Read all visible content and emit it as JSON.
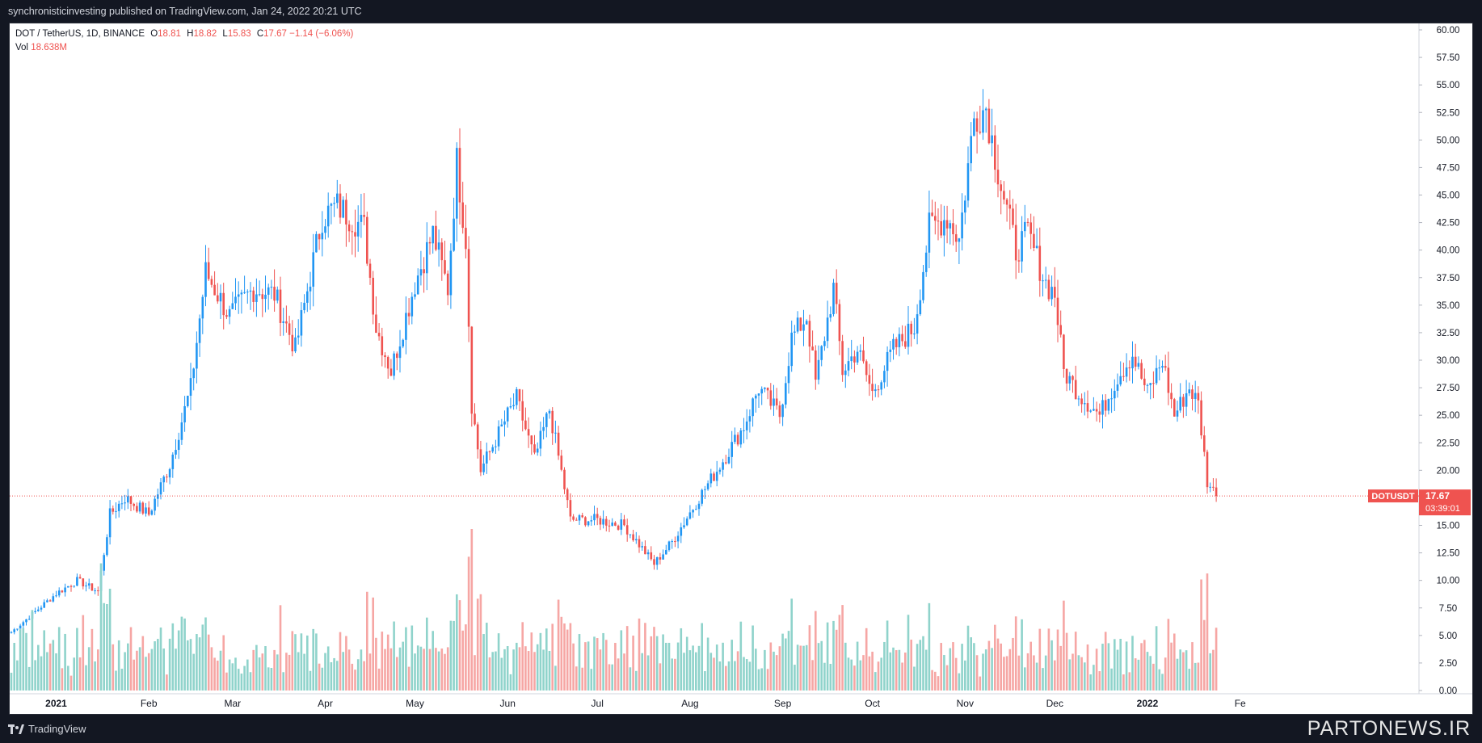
{
  "header": {
    "publisher_line": "synchronisticinvesting published on TradingView.com, Jan 24, 2022 20:21 UTC"
  },
  "legend": {
    "symbol": "DOT / TetherUS, 1D, BINANCE",
    "open_label": "O",
    "open": "18.81",
    "high_label": "H",
    "high": "18.82",
    "low_label": "L",
    "low": "15.83",
    "close_label": "C",
    "close": "17.67",
    "change": "−1.14 (−6.06%)",
    "vol_label": "Vol",
    "vol": "18.638M"
  },
  "price_tag": {
    "symbol": "DOTUSDT",
    "price": "17.67",
    "countdown": "03:39:01"
  },
  "footer": {
    "brand": "TradingView",
    "watermark": "PARTONEWS.IR"
  },
  "colors": {
    "up": "#26a69a",
    "down": "#ef5350",
    "up_vol": "#8fd3cb",
    "down_vol": "#f6a6a4",
    "line_up": "#2196f3",
    "background": "#ffffff"
  },
  "chart_data": {
    "type": "candlestick",
    "title": "",
    "y_axis": {
      "range": [
        0,
        60
      ],
      "ticks": [
        "0.00",
        "2.50",
        "5.00",
        "7.50",
        "10.00",
        "12.50",
        "15.00",
        "17.50",
        "20.00",
        "22.50",
        "25.00",
        "27.50",
        "30.00",
        "32.50",
        "35.00",
        "37.50",
        "40.00",
        "42.50",
        "45.00",
        "47.50",
        "50.00",
        "52.50",
        "55.00",
        "57.50",
        "60.00"
      ]
    },
    "x_axis": {
      "labels": [
        "2021",
        "Feb",
        "Mar",
        "Apr",
        "May",
        "Jun",
        "Jul",
        "Aug",
        "Sep",
        "Oct",
        "Nov",
        "Dec",
        "2022",
        "Fe"
      ],
      "bold": [
        "2021",
        "2022"
      ]
    },
    "last_price": 17.67,
    "series": [
      {
        "date": "2020-12-17",
        "close": 5.3
      },
      {
        "date": "2021-01-01",
        "close": 8.8
      },
      {
        "date": "2021-01-08",
        "close": 10.0
      },
      {
        "date": "2021-01-15",
        "close": 9.0
      },
      {
        "date": "2021-01-19",
        "close": 16.0
      },
      {
        "date": "2021-01-24",
        "close": 17.5
      },
      {
        "date": "2021-02-01",
        "close": 16.0
      },
      {
        "date": "2021-02-08",
        "close": 20.5
      },
      {
        "date": "2021-02-15",
        "close": 27.5
      },
      {
        "date": "2021-02-20",
        "close": 38.0
      },
      {
        "date": "2021-02-28",
        "close": 34.0
      },
      {
        "date": "2021-03-08",
        "close": 36.5
      },
      {
        "date": "2021-03-15",
        "close": 36.0
      },
      {
        "date": "2021-03-22",
        "close": 31.0
      },
      {
        "date": "2021-03-31",
        "close": 43.0
      },
      {
        "date": "2021-04-05",
        "close": 44.0
      },
      {
        "date": "2021-04-14",
        "close": 42.0
      },
      {
        "date": "2021-04-18",
        "close": 33.0
      },
      {
        "date": "2021-04-23",
        "close": 29.0
      },
      {
        "date": "2021-05-01",
        "close": 37.0
      },
      {
        "date": "2021-05-07",
        "close": 41.5
      },
      {
        "date": "2021-05-12",
        "close": 36.5
      },
      {
        "date": "2021-05-15",
        "close": 48.0
      },
      {
        "date": "2021-05-18",
        "close": 41.0
      },
      {
        "date": "2021-05-20",
        "close": 26.0
      },
      {
        "date": "2021-05-23",
        "close": 20.0
      },
      {
        "date": "2021-06-01",
        "close": 25.0
      },
      {
        "date": "2021-06-04",
        "close": 26.5
      },
      {
        "date": "2021-06-10",
        "close": 21.0
      },
      {
        "date": "2021-06-15",
        "close": 25.5
      },
      {
        "date": "2021-06-21",
        "close": 17.0
      },
      {
        "date": "2021-06-22",
        "close": 15.5
      },
      {
        "date": "2021-07-01",
        "close": 15.5
      },
      {
        "date": "2021-07-10",
        "close": 15.0
      },
      {
        "date": "2021-07-20",
        "close": 11.5
      },
      {
        "date": "2021-07-26",
        "close": 13.5
      },
      {
        "date": "2021-08-04",
        "close": 17.5
      },
      {
        "date": "2021-08-10",
        "close": 20.0
      },
      {
        "date": "2021-08-19",
        "close": 24.0
      },
      {
        "date": "2021-08-24",
        "close": 27.5
      },
      {
        "date": "2021-08-31",
        "close": 25.0
      },
      {
        "date": "2021-09-04",
        "close": 32.0
      },
      {
        "date": "2021-09-09",
        "close": 34.0
      },
      {
        "date": "2021-09-12",
        "close": 28.0
      },
      {
        "date": "2021-09-18",
        "close": 36.5
      },
      {
        "date": "2021-09-21",
        "close": 29.0
      },
      {
        "date": "2021-09-26",
        "close": 31.0
      },
      {
        "date": "2021-10-01",
        "close": 27.0
      },
      {
        "date": "2021-10-08",
        "close": 31.0
      },
      {
        "date": "2021-10-15",
        "close": 33.0
      },
      {
        "date": "2021-10-20",
        "close": 42.0
      },
      {
        "date": "2021-10-26",
        "close": 43.0
      },
      {
        "date": "2021-10-30",
        "close": 41.0
      },
      {
        "date": "2021-11-04",
        "close": 52.0
      },
      {
        "date": "2021-11-08",
        "close": 53.0
      },
      {
        "date": "2021-11-10",
        "close": 50.0
      },
      {
        "date": "2021-11-13",
        "close": 46.0
      },
      {
        "date": "2021-11-18",
        "close": 40.0
      },
      {
        "date": "2021-11-22",
        "close": 41.5
      },
      {
        "date": "2021-11-28",
        "close": 37.0
      },
      {
        "date": "2021-12-01",
        "close": 36.0
      },
      {
        "date": "2021-12-04",
        "close": 29.0
      },
      {
        "date": "2021-12-09",
        "close": 27.0
      },
      {
        "date": "2021-12-16",
        "close": 25.0
      },
      {
        "date": "2021-12-22",
        "close": 28.5
      },
      {
        "date": "2021-12-27",
        "close": 30.5
      },
      {
        "date": "2022-01-01",
        "close": 27.0
      },
      {
        "date": "2022-01-06",
        "close": 30.0
      },
      {
        "date": "2022-01-10",
        "close": 25.0
      },
      {
        "date": "2022-01-15",
        "close": 27.5
      },
      {
        "date": "2022-01-18",
        "close": 26.0
      },
      {
        "date": "2022-01-21",
        "close": 19.0
      },
      {
        "date": "2022-01-24",
        "close": 17.67
      }
    ]
  }
}
